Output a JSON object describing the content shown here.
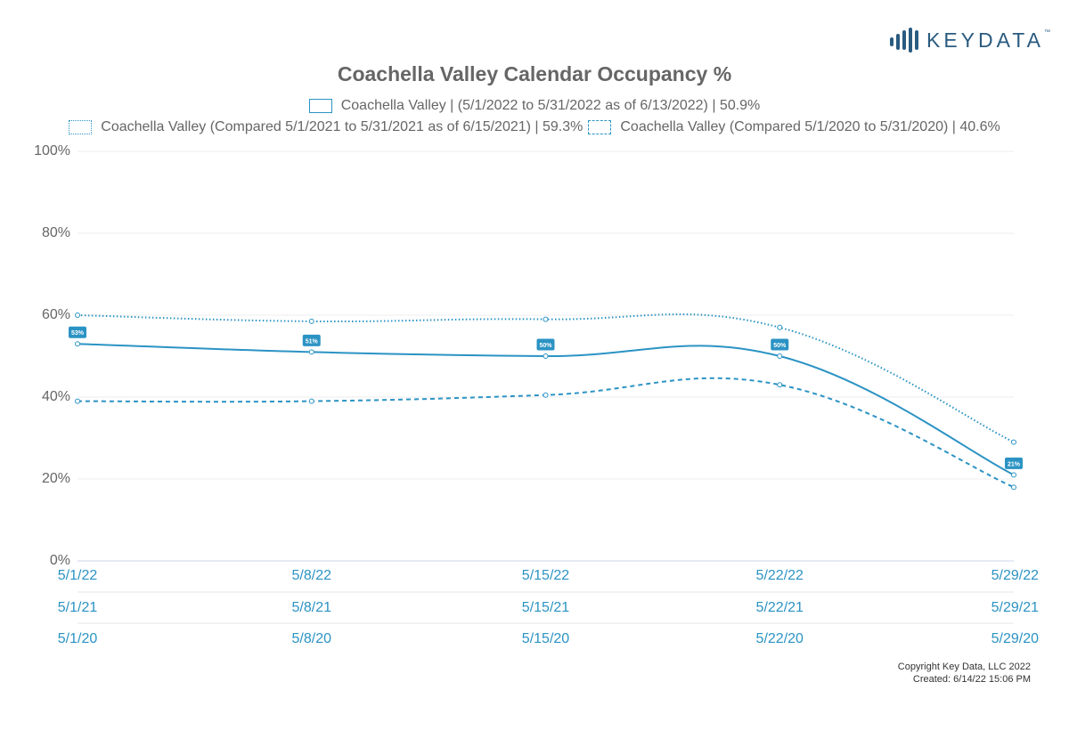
{
  "brand": {
    "name": "KEYDATA",
    "trademark": "™",
    "color": "#2a5b80"
  },
  "chart_data": {
    "type": "line",
    "title": "Coachella Valley Calendar Occupancy %",
    "accent_color": "#2b93c4",
    "ylim": [
      0,
      100
    ],
    "y_ticks": [
      "0%",
      "20%",
      "40%",
      "60%",
      "80%",
      "100%"
    ],
    "y_tick_values": [
      0,
      20,
      40,
      60,
      80,
      100
    ],
    "x_dates_2022": [
      "5/1/22",
      "5/8/22",
      "5/15/22",
      "5/22/22",
      "5/29/22"
    ],
    "x_dates_2021": [
      "5/1/21",
      "5/8/21",
      "5/15/21",
      "5/22/21",
      "5/29/21"
    ],
    "x_dates_2020": [
      "5/1/20",
      "5/8/20",
      "5/15/20",
      "5/22/20",
      "5/29/20"
    ],
    "grid": true,
    "legend_placement": "top",
    "series": [
      {
        "name": "Coachella Valley | (5/1/2022 to 5/31/2022 as of 6/13/2022) | 50.9%",
        "style": "solid",
        "values": [
          53,
          51,
          50,
          50,
          21
        ],
        "data_labels": [
          "53%",
          "51%",
          "50%",
          "50%",
          "21%"
        ]
      },
      {
        "name": "Coachella Valley (Compared 5/1/2021 to 5/31/2021 as of 6/15/2021) | 59.3%",
        "style": "dotted",
        "values": [
          60,
          58.5,
          59,
          57,
          29
        ]
      },
      {
        "name": "Coachella Valley (Compared 5/1/2020 to 5/31/2020) | 40.6%",
        "style": "dashed",
        "values": [
          39,
          39,
          40.5,
          43,
          18
        ]
      }
    ]
  },
  "footer": {
    "copyright": "Copyright Key Data, LLC 2022",
    "created": "Created: 6/14/22 15:06 PM"
  }
}
